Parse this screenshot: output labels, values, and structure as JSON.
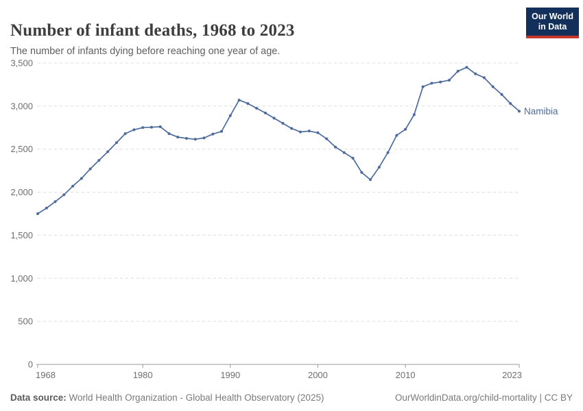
{
  "header": {
    "title": "Number of infant deaths, 1968 to 2023",
    "subtitle": "The number of infants dying before reaching one year of age.",
    "logo": {
      "line1": "Our World",
      "line2": "in Data",
      "bg_color": "#12305a",
      "accent_color": "#c5372c"
    }
  },
  "chart_data": {
    "type": "line",
    "title": "Number of infant deaths, 1968 to 2023",
    "xlabel": "",
    "ylabel": "",
    "xlim": [
      1968,
      2023
    ],
    "ylim": [
      0,
      3500
    ],
    "x_ticks": [
      1968,
      1980,
      1990,
      2000,
      2010,
      2023
    ],
    "y_ticks": [
      0,
      500,
      1000,
      1500,
      2000,
      2500,
      3000,
      3500
    ],
    "grid": "horizontal-dashed",
    "legend_position": "end-of-line",
    "line_color": "#4c6a9c",
    "series": [
      {
        "name": "Namibia",
        "color": "#4c6a9c",
        "x": [
          1968,
          1969,
          1970,
          1971,
          1972,
          1973,
          1974,
          1975,
          1976,
          1977,
          1978,
          1979,
          1980,
          1981,
          1982,
          1983,
          1984,
          1985,
          1986,
          1987,
          1988,
          1989,
          1990,
          1991,
          1992,
          1993,
          1994,
          1995,
          1996,
          1997,
          1998,
          1999,
          2000,
          2001,
          2002,
          2003,
          2004,
          2005,
          2006,
          2007,
          2008,
          2009,
          2010,
          2011,
          2012,
          2013,
          2014,
          2015,
          2016,
          2017,
          2018,
          2019,
          2020,
          2021,
          2022,
          2023
        ],
        "values": [
          1750,
          1815,
          1890,
          1970,
          2070,
          2160,
          2270,
          2370,
          2470,
          2575,
          2680,
          2725,
          2750,
          2755,
          2760,
          2680,
          2640,
          2625,
          2615,
          2630,
          2675,
          2705,
          2890,
          3070,
          3030,
          2975,
          2920,
          2860,
          2800,
          2740,
          2700,
          2710,
          2690,
          2620,
          2525,
          2460,
          2395,
          2230,
          2145,
          2290,
          2460,
          2660,
          2730,
          2900,
          3225,
          3265,
          3280,
          3300,
          3405,
          3450,
          3375,
          3330,
          3225,
          3135,
          3030,
          2940
        ]
      }
    ]
  },
  "footer": {
    "source_label": "Data source:",
    "source_text": " World Health Organization - Global Health Observatory (2025)",
    "link_text": "OurWorldinData.org/child-mortality | CC BY"
  }
}
